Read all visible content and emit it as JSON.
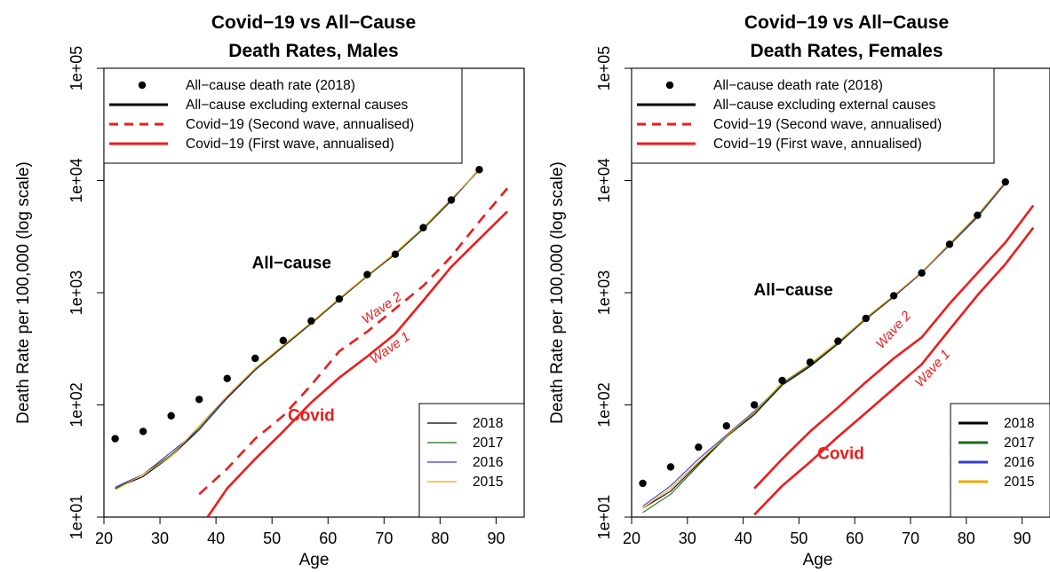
{
  "colors": {
    "all_cause_2018": "#000000",
    "all_cause_2017": "#1b6b1b",
    "all_cause_2016": "#3a3ad6",
    "all_cause_2015": "#f0a800",
    "covid": "#ee1c1c",
    "points": "#000000"
  },
  "chart_data": [
    {
      "type": "line",
      "title": "Covid−19 vs All−Cause",
      "subtitle": "Death Rates, Males",
      "xlabel": "Age",
      "ylabel": "Death Rate per 100,000 (log scale)",
      "xlim": [
        20,
        95
      ],
      "ylim": [
        10,
        100000
      ],
      "y_scale": "log",
      "x_ticks": [
        20,
        30,
        40,
        50,
        60,
        70,
        80,
        90
      ],
      "x_tick_labels": [
        "20",
        "30",
        "40",
        "50",
        "60",
        "70",
        "80",
        "90"
      ],
      "y_ticks": [
        10,
        100,
        1000,
        10000,
        100000
      ],
      "y_tick_labels": [
        "1e+01",
        "1e+02",
        "1e+03",
        "1e+04",
        "1e+05"
      ],
      "legend_top": {
        "position": "top-left",
        "entries": [
          {
            "label": "All−cause death rate (2018)",
            "style": "point"
          },
          {
            "label": "All−cause excluding external causes",
            "style": "solid-black"
          },
          {
            "label": "Covid−19 (Second wave, annualised)",
            "style": "dashed-red"
          },
          {
            "label": "Covid−19 (First wave, annualised)",
            "style": "solid-red"
          }
        ]
      },
      "legend_years": {
        "position": "bottom-right",
        "line_weight": "thin",
        "entries": [
          "2018",
          "2017",
          "2016",
          "2015"
        ]
      },
      "points": {
        "name": "All−cause death rate (2018)",
        "x": [
          22,
          27,
          32,
          37,
          42,
          47,
          52,
          57,
          62,
          67,
          72,
          77,
          82,
          87
        ],
        "y": [
          50,
          58,
          80,
          112,
          172,
          260,
          375,
          560,
          880,
          1450,
          2200,
          3800,
          6700,
          12500
        ]
      },
      "series": [
        {
          "name": "2018",
          "x": [
            22,
            27,
            32,
            37,
            42,
            47,
            52,
            57,
            62,
            67,
            72,
            77,
            82,
            87
          ],
          "y": [
            18,
            23,
            35,
            60,
            115,
            205,
            330,
            530,
            870,
            1400,
            2200,
            3700,
            6600,
            12500
          ]
        },
        {
          "name": "2017",
          "x": [
            22,
            27,
            32,
            37,
            42,
            47,
            52,
            57,
            62,
            67,
            72,
            77,
            82,
            87
          ],
          "y": [
            18,
            24,
            36,
            62,
            118,
            208,
            335,
            535,
            880,
            1410,
            2230,
            3750,
            6700,
            12600
          ]
        },
        {
          "name": "2016",
          "x": [
            22,
            27,
            32,
            37,
            42,
            47,
            52,
            57,
            62,
            67,
            72,
            77,
            82,
            87
          ],
          "y": [
            18.5,
            24,
            38,
            60,
            117,
            210,
            340,
            540,
            885,
            1420,
            2250,
            3800,
            6800,
            12300
          ]
        },
        {
          "name": "2015",
          "x": [
            22,
            27,
            32,
            37,
            42,
            47,
            52,
            57,
            62,
            67,
            72,
            77,
            82,
            87
          ],
          "y": [
            17.5,
            24,
            35,
            65,
            120,
            212,
            340,
            545,
            890,
            1430,
            2260,
            3820,
            6850,
            12400
          ]
        },
        {
          "name": "Covid−19 (Second wave, annualised)",
          "dashed": true,
          "x": [
            37,
            42,
            47,
            52,
            57,
            62,
            67,
            72,
            77,
            82,
            87,
            92
          ],
          "y": [
            16,
            27,
            50,
            80,
            150,
            300,
            450,
            720,
            1150,
            2100,
            4300,
            8500
          ]
        },
        {
          "name": "Covid−19 (First wave, annualised)",
          "x": [
            38.5,
            42,
            47,
            52,
            57,
            62,
            67,
            72,
            77,
            82,
            87,
            92
          ],
          "y": [
            10,
            18,
            33,
            58,
            105,
            175,
            270,
            430,
            850,
            1700,
            3000,
            5300
          ]
        }
      ],
      "annotations": [
        {
          "text": "All−cause",
          "x": 53.5,
          "y": 1650,
          "color": "#000000",
          "kind": "bold"
        },
        {
          "text": "Covid",
          "x": 57,
          "y": 72,
          "color": "#ee1c1c",
          "kind": "bold"
        },
        {
          "text": "Wave 2",
          "x": 70,
          "y": 680,
          "rotate": -35,
          "color": "#ee1c1c",
          "kind": "wave"
        },
        {
          "text": "Wave 1",
          "x": 71.5,
          "y": 300,
          "rotate": -35,
          "color": "#ee1c1c",
          "kind": "wave"
        }
      ]
    },
    {
      "type": "line",
      "title": "Covid−19 vs All−Cause",
      "subtitle": "Death Rates, Females",
      "xlabel": "Age",
      "ylabel": "Death Rate per 100,000 (log scale)",
      "xlim": [
        20,
        95
      ],
      "ylim": [
        10,
        100000
      ],
      "y_scale": "log",
      "x_ticks": [
        20,
        30,
        40,
        50,
        60,
        70,
        80,
        90
      ],
      "x_tick_labels": [
        "20",
        "30",
        "40",
        "50",
        "60",
        "70",
        "80",
        "90"
      ],
      "y_ticks": [
        10,
        100,
        1000,
        10000,
        100000
      ],
      "y_tick_labels": [
        "1e+01",
        "1e+02",
        "1e+03",
        "1e+04",
        "1e+05"
      ],
      "legend_top": {
        "position": "top-left",
        "entries": [
          {
            "label": "All−cause death rate (2018)",
            "style": "point"
          },
          {
            "label": "All−cause excluding external causes",
            "style": "solid-black"
          },
          {
            "label": "Covid−19 (Second wave, annualised)",
            "style": "dashed-red"
          },
          {
            "label": "Covid−19 (First wave, annualised)",
            "style": "solid-red"
          }
        ]
      },
      "legend_years": {
        "position": "bottom-right",
        "line_weight": "thick",
        "entries": [
          "2018",
          "2017",
          "2016",
          "2015"
        ]
      },
      "points": {
        "name": "All−cause death rate (2018)",
        "x": [
          22,
          27,
          32,
          37,
          42,
          47,
          52,
          57,
          62,
          67,
          72,
          77,
          82,
          87
        ],
        "y": [
          20,
          28,
          42,
          65,
          100,
          165,
          240,
          370,
          590,
          940,
          1500,
          2700,
          4900,
          9700
        ]
      },
      "series": [
        {
          "name": "2018",
          "x": [
            22,
            27,
            32,
            37,
            42,
            47,
            52,
            57,
            62,
            67,
            72,
            77,
            82,
            87
          ],
          "y": [
            12,
            17,
            30,
            52,
            82,
            150,
            220,
            350,
            580,
            920,
            1500,
            2700,
            4800,
            9600
          ]
        },
        {
          "name": "2017",
          "x": [
            22,
            27,
            32,
            37,
            42,
            47,
            52,
            57,
            62,
            67,
            72,
            77,
            82,
            87
          ],
          "y": [
            11,
            16,
            29,
            52,
            85,
            152,
            225,
            355,
            585,
            930,
            1520,
            2720,
            4850,
            9700
          ]
        },
        {
          "name": "2016",
          "x": [
            22,
            27,
            32,
            37,
            42,
            47,
            52,
            57,
            62,
            67,
            72,
            77,
            82,
            87
          ],
          "y": [
            12.5,
            19,
            33,
            54,
            88,
            155,
            230,
            360,
            595,
            935,
            1510,
            2650,
            4700,
            9400
          ]
        },
        {
          "name": "2015",
          "x": [
            22,
            27,
            32,
            37,
            42,
            47,
            52,
            57,
            62,
            67,
            72,
            77,
            82,
            87
          ],
          "y": [
            12,
            18,
            31,
            53,
            86,
            158,
            232,
            365,
            600,
            945,
            1530,
            2750,
            4950,
            9800
          ]
        },
        {
          "name": "Covid−19 (Second wave, annualised)",
          "x": [
            42,
            47,
            52,
            57,
            62,
            67,
            72,
            77,
            82,
            87,
            92
          ],
          "y": [
            18,
            33,
            58,
            95,
            160,
            260,
            400,
            800,
            1500,
            2800,
            6000
          ]
        },
        {
          "name": "Covid−19 (First wave, annualised)",
          "x": [
            42,
            47,
            52,
            57,
            62,
            67,
            72,
            77,
            82,
            87,
            92
          ],
          "y": [
            10.5,
            19,
            31,
            52,
            85,
            140,
            230,
            470,
            950,
            1800,
            3800
          ]
        }
      ],
      "annotations": [
        {
          "text": "All−cause",
          "x": 49,
          "y": 950,
          "color": "#000000",
          "kind": "bold"
        },
        {
          "text": "Covid",
          "x": 57.5,
          "y": 33,
          "color": "#ee1c1c",
          "kind": "bold"
        },
        {
          "text": "Wave 2",
          "x": 67.5,
          "y": 440,
          "rotate": -48,
          "color": "#ee1c1c",
          "kind": "wave"
        },
        {
          "text": "Wave 1",
          "x": 74.5,
          "y": 200,
          "rotate": -48,
          "color": "#ee1c1c",
          "kind": "wave"
        }
      ]
    }
  ]
}
